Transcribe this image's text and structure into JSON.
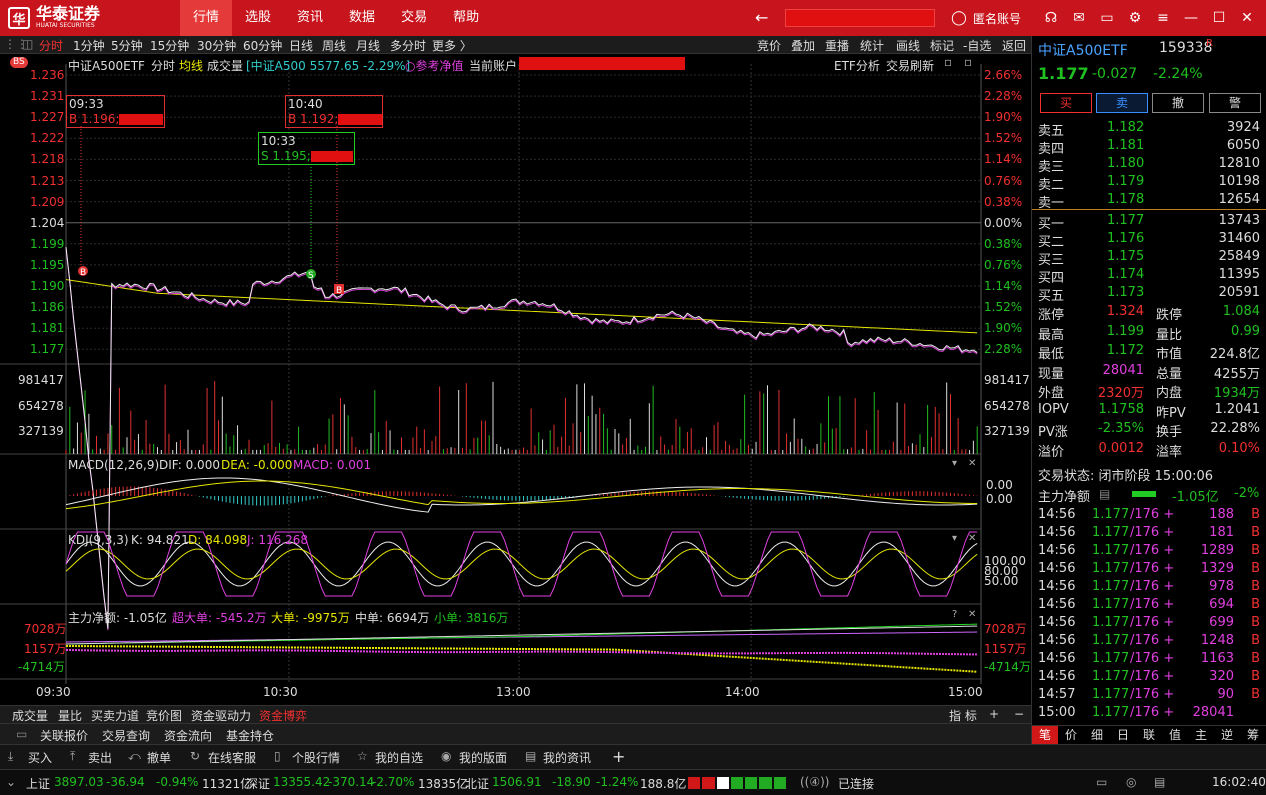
{
  "app": {
    "logo_text": "华泰证券",
    "logo_sub": "HUATAI SECURITIES"
  },
  "menu": [
    "行情",
    "选股",
    "资讯",
    "数据",
    "交易",
    "帮助"
  ],
  "title_right": {
    "account": "匿名账号"
  },
  "periods": [
    "分时",
    "1分钟",
    "5分钟",
    "15分钟",
    "30分钟",
    "60分钟",
    "日线",
    "周线",
    "月线",
    "多分时",
    "更多 〉"
  ],
  "toolbar_right": [
    "竞价",
    "叠加",
    "重播",
    "统计",
    "画线",
    "标记",
    "-自选",
    "返回"
  ],
  "chart_header": {
    "bs": "BS",
    "name": "中证A500ETF",
    "mode": "分时",
    "avg": "均线",
    "vol": "成交量",
    "index": "[中证A500 5577.65 -2.29%]",
    "ref": "○参考净值",
    "acct": "当前账户",
    "etf": "ETF分析",
    "refresh": "交易刷新"
  },
  "price_axis_left": [
    "1.236",
    "1.231",
    "1.227",
    "1.222",
    "1.218",
    "1.213",
    "1.209",
    "1.204",
    "1.199",
    "1.195",
    "1.190",
    "1.186",
    "1.181",
    "1.177"
  ],
  "price_axis_right": [
    "2.66%",
    "2.28%",
    "1.90%",
    "1.52%",
    "1.14%",
    "0.76%",
    "0.38%",
    "0.00%",
    "0.38%",
    "0.76%",
    "1.14%",
    "1.52%",
    "1.90%",
    "2.28%"
  ],
  "vol_axis": [
    "981417",
    "654278",
    "327139"
  ],
  "trades": [
    {
      "time": "09:33",
      "text": "B 1.196;"
    },
    {
      "time": "10:40",
      "text": "B 1.192;"
    },
    {
      "time": "10:33",
      "text": "S 1.195;"
    }
  ],
  "macd": {
    "label": "MACD(12,26,9)",
    "dif": "DIF: 0.000",
    "dea": "DEA: -0.000",
    "macd": "MACD: 0.001",
    "axis": [
      "0.00",
      "0.00"
    ]
  },
  "kdj": {
    "label": "KDJ(9,3,3)",
    "k": "K: 94.821",
    "d": "D: 84.098",
    "j": "J: 116.268",
    "axis": [
      "100.00",
      "80.00",
      "50.00"
    ]
  },
  "flow": {
    "label": "主力净额: -1.05亿",
    "super": "超大单: -545.2万",
    "big": "大单: -9975万",
    "mid": "中单: 6694万",
    "small": "小单: 3816万",
    "axis": [
      "7028万",
      "1157万",
      "-4714万"
    ]
  },
  "time_axis": [
    "09:30",
    "10:30",
    "13:00",
    "14:00",
    "15:00"
  ],
  "tabs1": [
    "成交量",
    "量比",
    "买卖力道",
    "竞价图",
    "资金驱动力",
    "资金博弈"
  ],
  "tabs1_right": [
    "指 标",
    "+",
    "−"
  ],
  "tabs2": [
    "关联报价",
    "交易查询",
    "资金流向",
    "基金持仓"
  ],
  "quote": {
    "name": "中证A500ETF",
    "code": "159338",
    "flag": "R",
    "price": "1.177",
    "chg": "-0.027",
    "pct": "-2.24%"
  },
  "trade_btns": [
    "买",
    "卖",
    "撤",
    "警"
  ],
  "asks": [
    {
      "l": "卖五",
      "p": "1.182",
      "v": "3924"
    },
    {
      "l": "卖四",
      "p": "1.181",
      "v": "6050"
    },
    {
      "l": "卖三",
      "p": "1.180",
      "v": "12810"
    },
    {
      "l": "卖二",
      "p": "1.179",
      "v": "10198"
    },
    {
      "l": "卖一",
      "p": "1.178",
      "v": "12654"
    }
  ],
  "bids": [
    {
      "l": "买一",
      "p": "1.177",
      "v": "13743"
    },
    {
      "l": "买二",
      "p": "1.176",
      "v": "31460"
    },
    {
      "l": "买三",
      "p": "1.175",
      "v": "25849"
    },
    {
      "l": "买四",
      "p": "1.174",
      "v": "11395"
    },
    {
      "l": "买五",
      "p": "1.173",
      "v": "20591"
    }
  ],
  "stats": [
    {
      "a": "涨停",
      "av": "1.324",
      "ac": "red",
      "b": "跌停",
      "bv": "1.084",
      "bc": "grn"
    },
    {
      "a": "最高",
      "av": "1.199",
      "ac": "grn",
      "b": "量比",
      "bv": "0.99",
      "bc": "grn"
    },
    {
      "a": "最低",
      "av": "1.172",
      "ac": "grn",
      "b": "市值",
      "bv": "224.8亿",
      "bc": "wht"
    },
    {
      "a": "现量",
      "av": "28041",
      "ac": "mag",
      "b": "总量",
      "bv": "4255万",
      "bc": "wht"
    },
    {
      "a": "外盘",
      "av": "2320万",
      "ac": "red",
      "b": "内盘",
      "bv": "1934万",
      "bc": "grn"
    },
    {
      "a": "IOPV",
      "av": "1.1758",
      "ac": "grn",
      "b": "昨PV",
      "bv": "1.2041",
      "bc": "wht"
    },
    {
      "a": "PV涨",
      "av": "-2.35%",
      "ac": "grn",
      "b": "换手",
      "bv": "22.28%",
      "bc": "wht"
    },
    {
      "a": "溢价",
      "av": "0.0012",
      "ac": "red",
      "b": "溢率",
      "bv": "0.10%",
      "bc": "red"
    }
  ],
  "trade_status": "交易状态: 闭市阶段 15:00:06",
  "mainflow": {
    "label": "主力净额",
    "val": "-1.05亿",
    "pct": "-2%"
  },
  "ticks": [
    {
      "t": "14:56",
      "p": "1.177",
      "c": "/176 +",
      "v": "188",
      "bs": "B"
    },
    {
      "t": "14:56",
      "p": "1.177",
      "c": "/176 +",
      "v": "181",
      "bs": "B"
    },
    {
      "t": "14:56",
      "p": "1.177",
      "c": "/176 +",
      "v": "1289",
      "bs": "B"
    },
    {
      "t": "14:56",
      "p": "1.177",
      "c": "/176 +",
      "v": "1329",
      "bs": "B"
    },
    {
      "t": "14:56",
      "p": "1.177",
      "c": "/176 +",
      "v": "978",
      "bs": "B"
    },
    {
      "t": "14:56",
      "p": "1.177",
      "c": "/176 +",
      "v": "694",
      "bs": "B"
    },
    {
      "t": "14:56",
      "p": "1.177",
      "c": "/176 +",
      "v": "699",
      "bs": "B"
    },
    {
      "t": "14:56",
      "p": "1.177",
      "c": "/176 +",
      "v": "1248",
      "bs": "B"
    },
    {
      "t": "14:56",
      "p": "1.177",
      "c": "/176 +",
      "v": "1163",
      "bs": "B"
    },
    {
      "t": "14:56",
      "p": "1.177",
      "c": "/176 +",
      "v": "320",
      "bs": "B"
    },
    {
      "t": "14:57",
      "p": "1.177",
      "c": "/176 +",
      "v": "90",
      "bs": "B"
    },
    {
      "t": "15:00",
      "p": "1.177",
      "c": "/176 +",
      "v": "28041",
      "bs": ""
    }
  ],
  "rp_tabs": [
    "笔",
    "价",
    "细",
    "日",
    "联",
    "值",
    "主",
    "逆",
    "筹"
  ],
  "actions": [
    "买入",
    "卖出",
    "撤单",
    "在线客服",
    "个股行情",
    "我的自选",
    "我的版面",
    "我的资讯",
    "+"
  ],
  "status": {
    "sh": "上证",
    "sh_v": "3897.03",
    "sh_c": "-36.94",
    "sh_p": "-0.94%",
    "sh_a": "11321亿",
    "sz": "深证",
    "sz_v": "13355.42",
    "sz_c": "-370.14",
    "sz_p": "-2.70%",
    "sz_a": "13835亿",
    "bz": "北证",
    "bz_v": "1506.91",
    "bz_c": "-18.90",
    "bz_p": "-1.24%",
    "bz_a": "188.8亿",
    "conn": "已连接",
    "time": "16:02:40"
  }
}
